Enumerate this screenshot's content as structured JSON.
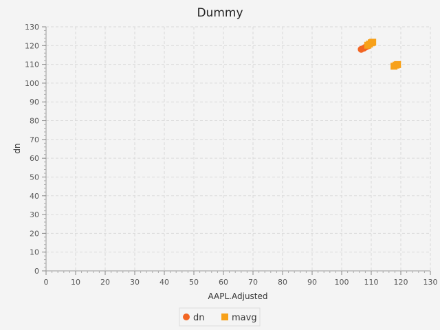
{
  "chart_data": {
    "type": "scatter",
    "title": "Dummy",
    "xlabel": "AAPL.Adjusted",
    "ylabel": "dn",
    "xlim": [
      0,
      130
    ],
    "ylim": [
      0,
      130
    ],
    "xticks": [
      0,
      10,
      20,
      30,
      40,
      50,
      60,
      70,
      80,
      90,
      100,
      110,
      120,
      130
    ],
    "yticks": [
      0,
      10,
      20,
      30,
      40,
      50,
      60,
      70,
      80,
      90,
      100,
      110,
      120,
      130
    ],
    "grid": true,
    "legend_position": "bottom",
    "series": [
      {
        "name": "dn",
        "marker": "circle",
        "color": "#f26522",
        "points": [
          [
            106.6,
            118.0
          ],
          [
            107.5,
            118.6
          ],
          [
            108.2,
            119.3
          ],
          [
            108.9,
            119.8
          ]
        ]
      },
      {
        "name": "mavg",
        "marker": "square",
        "color": "#f7a11a",
        "points": [
          [
            108.8,
            120.2
          ],
          [
            109.4,
            120.8
          ],
          [
            110.0,
            121.5
          ],
          [
            110.5,
            121.8
          ],
          [
            117.7,
            109.0
          ],
          [
            118.4,
            109.6
          ],
          [
            118.9,
            109.9
          ]
        ]
      }
    ]
  }
}
